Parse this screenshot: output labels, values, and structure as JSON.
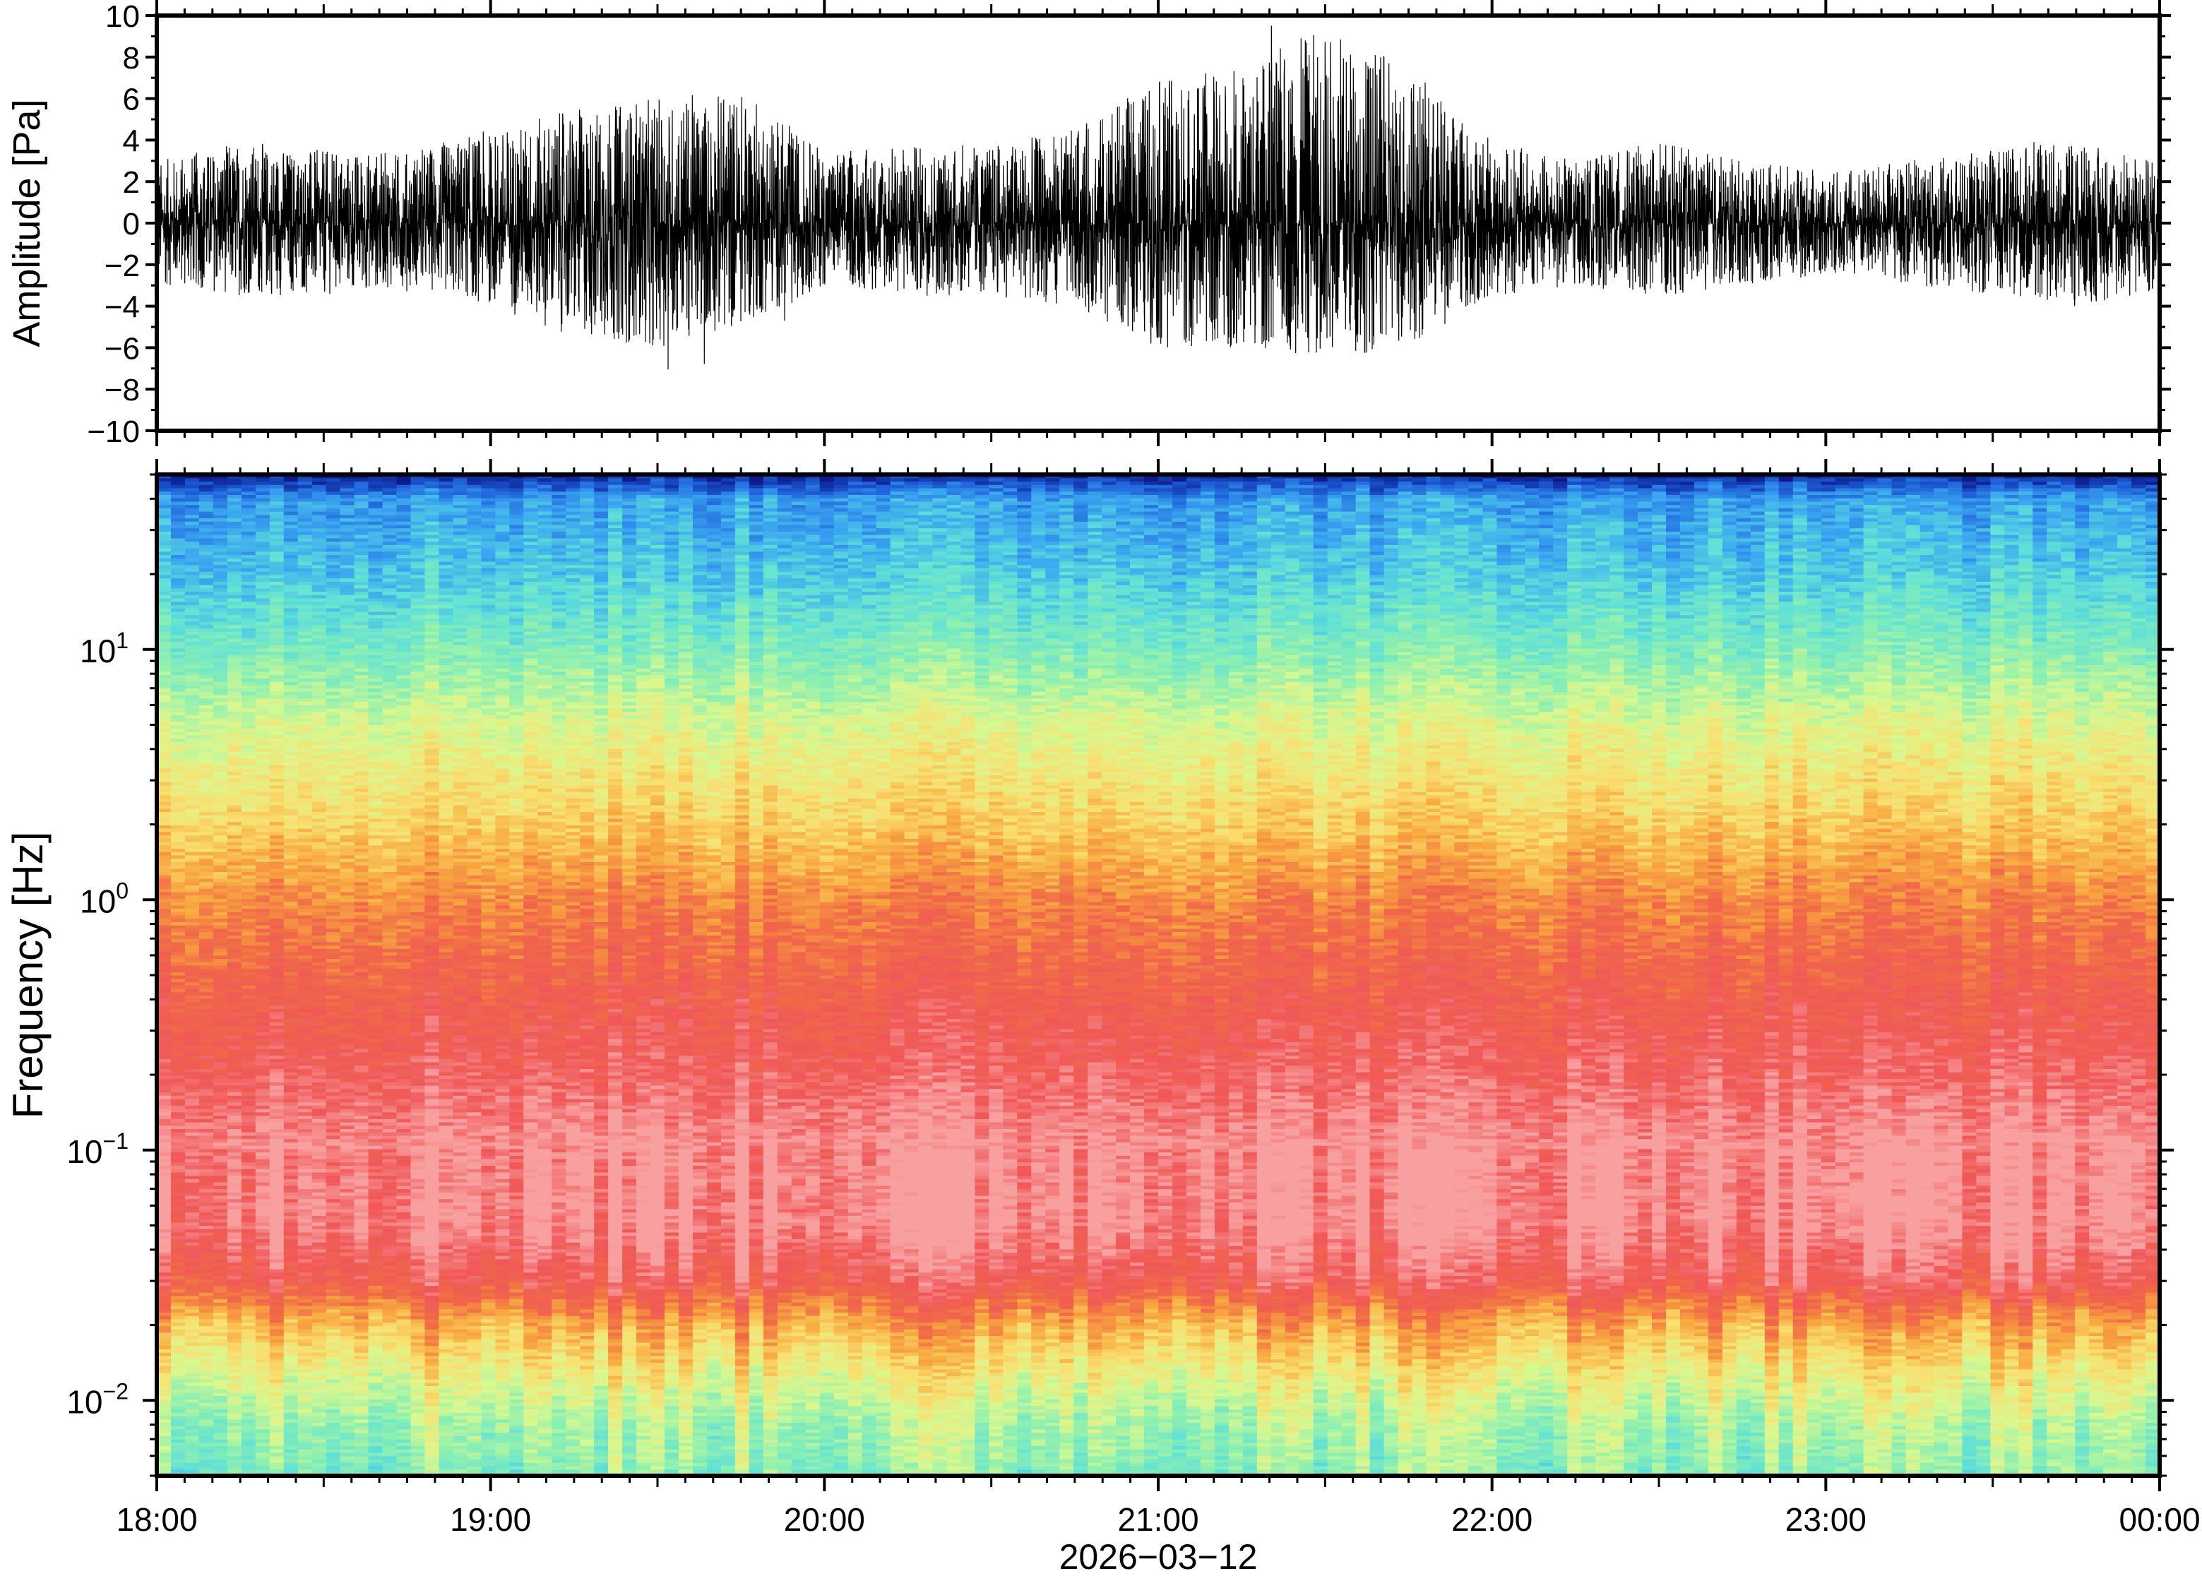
{
  "chart_data": [
    {
      "type": "line",
      "panel": "waveform",
      "ylabel": "Amplitude [Pa]",
      "ylim": [
        -10,
        10
      ],
      "y_ticks": [
        -10,
        -8,
        -6,
        -4,
        -2,
        0,
        2,
        4,
        6,
        8,
        10
      ],
      "y_tick_labels": [
        "−10",
        "−8",
        "−6",
        "−4",
        "−2",
        "0",
        "2",
        "4",
        "6",
        "8",
        "10"
      ],
      "envelope": {
        "time_hours": [
          18.0,
          18.25,
          18.5,
          18.75,
          19.0,
          19.25,
          19.5,
          19.75,
          20.0,
          20.25,
          20.5,
          20.75,
          21.0,
          21.25,
          21.5,
          21.75,
          22.0,
          22.25,
          22.5,
          22.75,
          23.0,
          23.25,
          23.5,
          23.75,
          24.0
        ],
        "max_pa": [
          3.0,
          4.0,
          3.5,
          3.5,
          4.5,
          5.5,
          6.0,
          6.5,
          3.5,
          3.8,
          3.8,
          4.5,
          7.0,
          7.5,
          9.5,
          7.5,
          4.0,
          3.0,
          4.0,
          3.0,
          2.5,
          3.0,
          3.5,
          4.0,
          3.0
        ],
        "min_pa": [
          -3.0,
          -3.5,
          -3.5,
          -3.0,
          -4.0,
          -5.5,
          -6.0,
          -5.0,
          -3.0,
          -3.5,
          -3.5,
          -4.0,
          -6.0,
          -6.0,
          -6.5,
          -6.0,
          -3.5,
          -3.0,
          -3.5,
          -3.0,
          -2.5,
          -3.0,
          -3.5,
          -4.0,
          -3.5
        ]
      },
      "grid": false
    },
    {
      "type": "heatmap",
      "panel": "spectrogram",
      "ylabel": "Frequency [Hz]",
      "y_scale": "log",
      "ylim_hz": [
        0.005,
        50
      ],
      "y_ticks_hz": [
        0.01,
        0.1,
        1,
        10
      ],
      "y_tick_labels": [
        {
          "base": "10",
          "exp": "−2"
        },
        {
          "base": "10",
          "exp": "−1"
        },
        {
          "base": "10",
          "exp": "0"
        },
        {
          "base": "10",
          "exp": "1"
        }
      ],
      "colormap": [
        "#0a1a8c",
        "#1e5fd8",
        "#3aa6f0",
        "#5fe0d8",
        "#8ef0b0",
        "#d8f890",
        "#f8e070",
        "#f8a840",
        "#f06848",
        "#f05858",
        "#f8a0a0"
      ],
      "relative_power_by_frequency": {
        "frequency_hz": [
          0.005,
          0.008,
          0.012,
          0.02,
          0.03,
          0.05,
          0.1,
          0.2,
          0.4,
          1,
          2,
          5,
          10,
          20,
          40,
          50
        ],
        "relative_power": [
          0.4,
          0.45,
          0.55,
          0.7,
          0.9,
          1.0,
          1.0,
          0.92,
          0.86,
          0.76,
          0.64,
          0.52,
          0.38,
          0.27,
          0.2,
          0.02
        ]
      },
      "grid": false
    }
  ],
  "x_axis": {
    "tick_labels": [
      "18:00",
      "19:00",
      "20:00",
      "21:00",
      "22:00",
      "23:00",
      "00:00"
    ],
    "label": "2026−03−12",
    "range_hours": [
      18,
      24
    ]
  }
}
